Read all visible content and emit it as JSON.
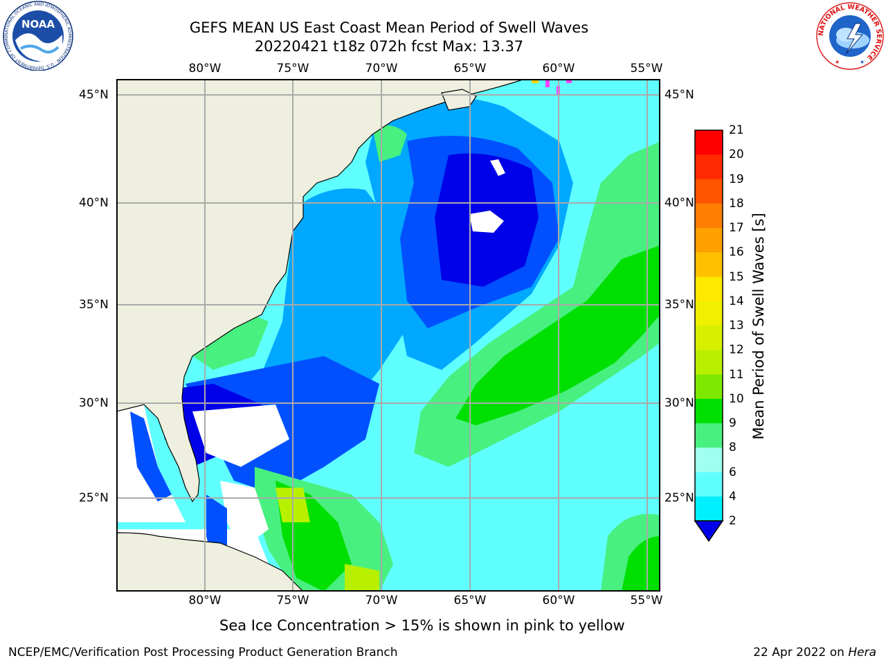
{
  "header": {
    "title_line1": "GEFS MEAN US East Coast Mean Period of Swell Waves",
    "title_line2": "20220421 t18z 072h fcst   Max: 13.37"
  },
  "logos": {
    "noaa_text": "NOAA",
    "noaa_ring_text": "NATIONAL OCEANIC AND ATMOSPHERIC ADMINISTRATION · U.S. DEPARTMENT OF COMMERCE",
    "nws_ring_text": "NATIONAL WEATHER SERVICE"
  },
  "map": {
    "lon_labels": [
      "80°W",
      "75°W",
      "70°W",
      "65°W",
      "60°W",
      "55°W"
    ],
    "lat_labels": [
      "45°N",
      "40°N",
      "35°N",
      "30°N",
      "25°N"
    ],
    "colors": {
      "land": "#EFEFDF",
      "grid": "#AAAAAA"
    }
  },
  "colorbar": {
    "label": "Mean Period of Swell Waves [s]",
    "ticks": [
      "21",
      "20",
      "19",
      "18",
      "17",
      "16",
      "15",
      "14",
      "13",
      "12",
      "11",
      "10",
      "9",
      "8",
      "6",
      "4",
      "2"
    ],
    "colors": [
      "#ff0000",
      "#ff2a00",
      "#ff5400",
      "#ff7e00",
      "#ff9f00",
      "#ffc000",
      "#ffe900",
      "#f0f000",
      "#d6f000",
      "#b8f000",
      "#7fe800",
      "#00e000",
      "#48f080",
      "#a0fff0",
      "#60ffff",
      "#00f0ff",
      "#00a8ff",
      "#0050ff",
      "#0000e8"
    ]
  },
  "note": "Sea Ice Concentration > 15% is shown in pink to yellow",
  "footer": {
    "left": "NCEP/EMC/Verification Post Processing Product Generation Branch",
    "date": "22 Apr 2022 on",
    "machine": "Hera"
  }
}
